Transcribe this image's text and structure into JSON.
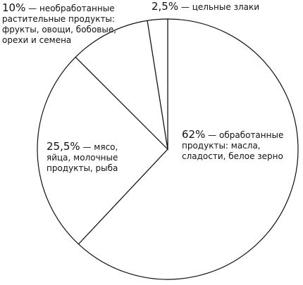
{
  "chart_data": {
    "type": "pie",
    "categories": [
      "— обработанные продукты: масла, сладости, белое зерно",
      "— мясо, яйца, молочные продукты, рыба",
      "— необработанные растительные продукты: фрукты, овощи, бобовые, орехи и семена",
      "— цельные злаки"
    ],
    "values": [
      62,
      25.5,
      10,
      2.5
    ],
    "value_labels": [
      "62%",
      "25,5%",
      "10%",
      "2,5%"
    ],
    "color": "#ffffff"
  }
}
